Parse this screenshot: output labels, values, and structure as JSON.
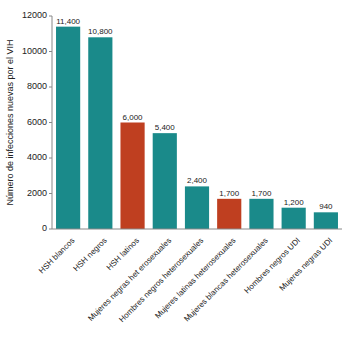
{
  "chart_data": {
    "type": "bar",
    "categories": [
      "HSH blancos",
      "HSH negros",
      "HSH latinos",
      "Mujeres negras het erosexuales",
      "Hombres negros heterosexuales",
      "Mujeres latinas heterosexuales",
      "Mujeres blancas heterosexuales",
      "Hombres negros UDI",
      "Mujeres negras UDI"
    ],
    "values": [
      11400,
      10800,
      6000,
      5400,
      2400,
      1700,
      1700,
      1200,
      940
    ],
    "value_labels": [
      "11,400",
      "10,800",
      "6,000",
      "5,400",
      "2,400",
      "1,700",
      "1,700",
      "1,200",
      "940"
    ],
    "data_labels": true,
    "colors": [
      "#1a8a8a",
      "#1a8a8a",
      "#bf3f20",
      "#1a8a8a",
      "#1a8a8a",
      "#bf3f20",
      "#1a8a8a",
      "#1a8a8a",
      "#1a8a8a"
    ],
    "ylabel": "Número de infecciones nuevas por el VIH",
    "ylim": [
      0,
      12000
    ],
    "yticks": [
      0,
      2000,
      4000,
      6000,
      8000,
      10000,
      12000
    ],
    "grid": false
  }
}
